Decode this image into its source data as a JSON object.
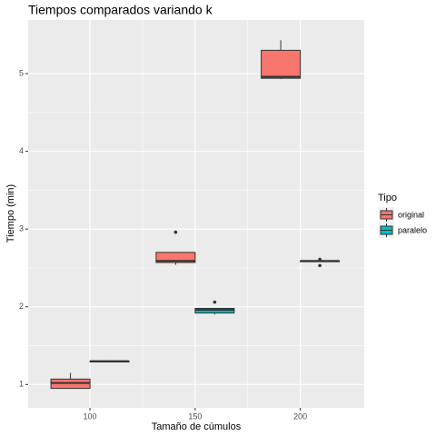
{
  "chart_data": {
    "type": "box",
    "title": "Tiempos comparados variando k",
    "x_label": "Tamaño de cúmulos",
    "y_label": "Tiempo (min)",
    "legend_title": "Tipo",
    "legend": "right",
    "grid": true,
    "x": [
      100,
      150,
      200
    ],
    "xlim": [
      70.6,
      230.4
    ],
    "xticks": [
      100,
      150,
      200
    ],
    "ylim": [
      0.7,
      5.69
    ],
    "yticks": [
      1,
      2,
      3,
      4,
      5
    ],
    "series": [
      {
        "name": "original",
        "color": "#F8766D",
        "min": [
          0.95,
          2.54,
          4.93
        ],
        "q1": [
          0.95,
          2.57,
          4.94
        ],
        "median": [
          1.02,
          2.59,
          4.96
        ],
        "q3": [
          1.07,
          2.7,
          5.3
        ],
        "max": [
          1.15,
          2.7,
          5.43
        ],
        "outliers": [
          [],
          [
            2.96
          ],
          []
        ]
      },
      {
        "name": "paralelo",
        "color": "#00BFC4",
        "min": [
          1.29,
          1.9,
          2.58
        ],
        "q1": [
          1.29,
          1.92,
          2.58
        ],
        "median": [
          1.3,
          1.96,
          2.59
        ],
        "q3": [
          1.3,
          1.98,
          2.59
        ],
        "max": [
          1.31,
          1.98,
          2.6
        ],
        "outliers": [
          [],
          [
            2.06
          ],
          [
            2.53,
            2.61
          ]
        ]
      }
    ]
  }
}
